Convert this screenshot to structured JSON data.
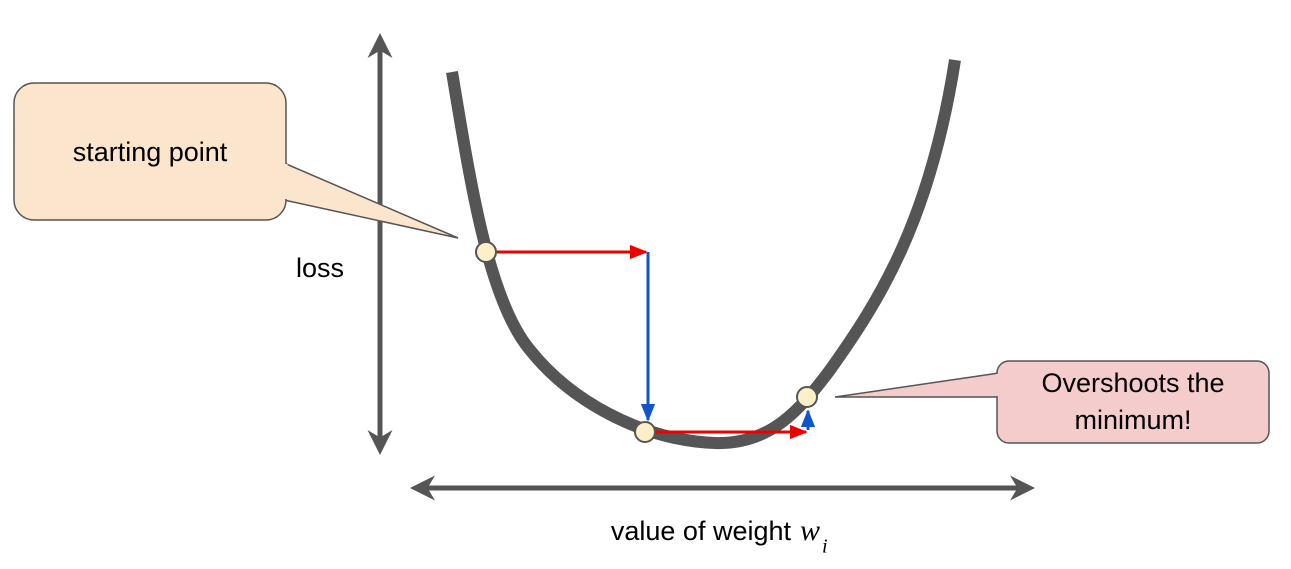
{
  "labels": {
    "y_axis": "loss",
    "x_axis": "value of weight",
    "x_axis_symbol": "w",
    "x_axis_subscript": "i"
  },
  "callouts": [
    {
      "lines": [
        "starting point"
      ]
    },
    {
      "lines": [
        "Overshoots the",
        "minimum!"
      ]
    }
  ]
}
